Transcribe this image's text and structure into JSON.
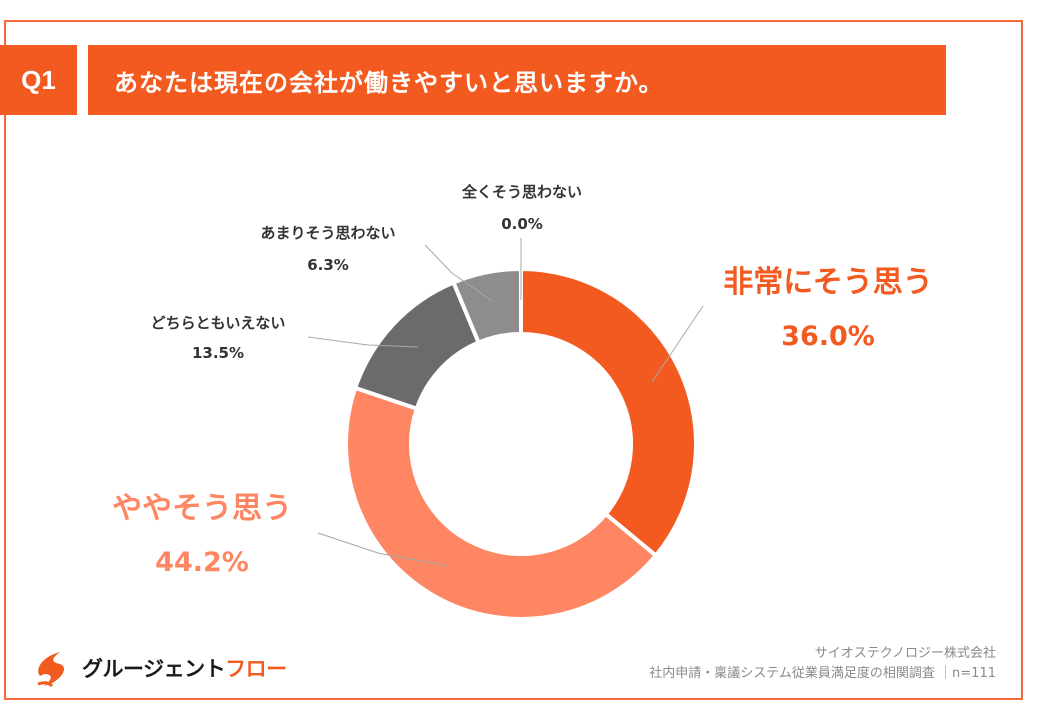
{
  "question": {
    "badge": "Q1",
    "title": "あなたは現在の会社が働きやすいと思いますか。"
  },
  "chart_data": {
    "type": "pie",
    "donut": true,
    "title": "あなたは現在の会社が働きやすいと思いますか。",
    "slices": [
      {
        "label": "非常にそう思う",
        "value": 36.0,
        "value_label": "36.0%",
        "color": "#F25A1F"
      },
      {
        "label": "ややそう思う",
        "value": 44.2,
        "value_label": "44.2%",
        "color": "#FF8663"
      },
      {
        "label": "どちらともいえない",
        "value": 13.5,
        "value_label": "13.5%",
        "color": "#6C6A6C"
      },
      {
        "label": "あまりそう思わない",
        "value": 6.3,
        "value_label": "6.3%",
        "color": "#8E8C8E"
      },
      {
        "label": "全くそう思わない",
        "value": 0.0,
        "value_label": "0.0%",
        "color": "#3F3D3F"
      }
    ]
  },
  "logo": {
    "name_part1": "グルージェント",
    "name_part2": "フロー",
    "brand_color": "#F25A1F"
  },
  "source": {
    "company": "サイオステクノロジー株式会社",
    "survey": "社内申請・稟議システム従業員満足度の相関調査",
    "sample": "n=111"
  }
}
